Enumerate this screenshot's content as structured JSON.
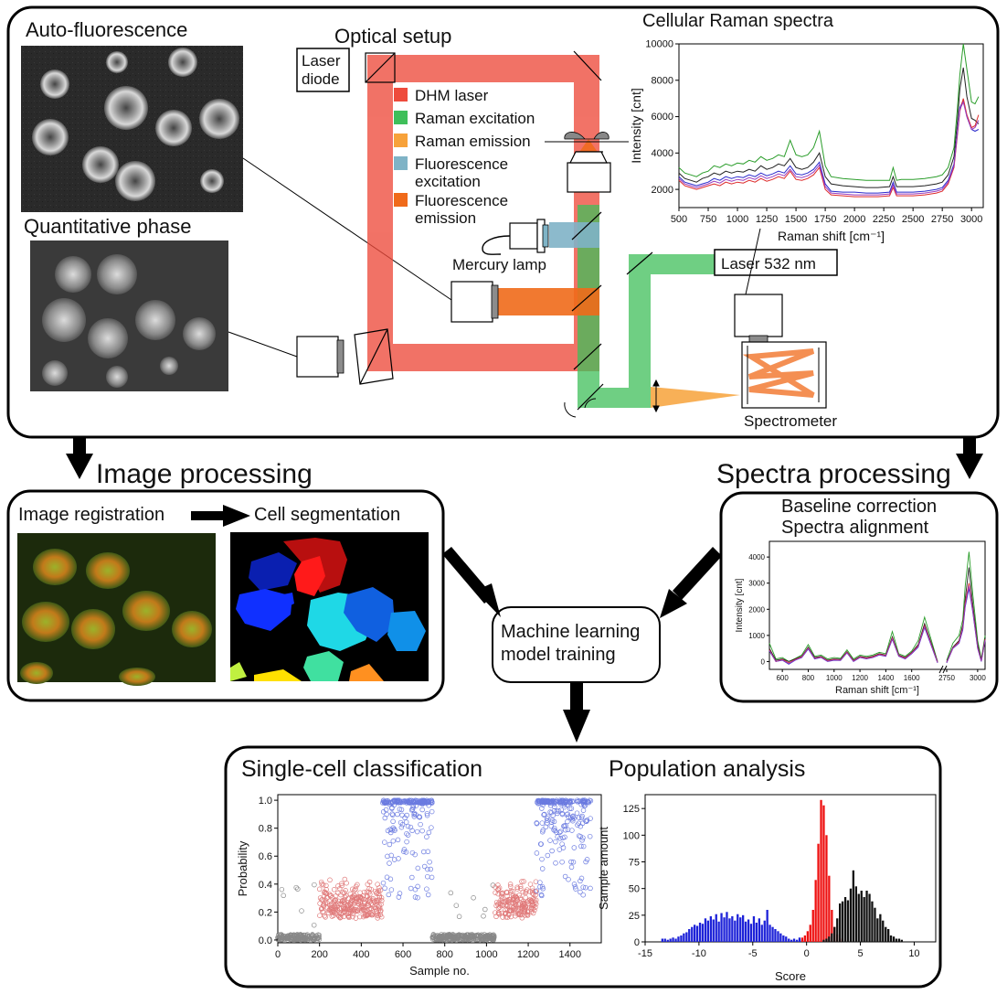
{
  "colors": {
    "dhm": "#ee4b3c",
    "raman_exc": "#3fbf5a",
    "raman_em": "#f7a23a",
    "fluo_exc": "#7fb3c6",
    "fluo_em": "#f06a1a",
    "class_a": "#e07a7a",
    "class_b": "#6b7be0",
    "class_c": "#888888",
    "hist_blue": "#1d22d8",
    "hist_red": "#ee1010",
    "hist_black": "#111111"
  },
  "top": {
    "autofluorescence_title": "Auto-fluorescence",
    "quantitative_phase_title": "Quantitative phase",
    "optical_setup_title": "Optical setup",
    "laser_diode_line1": "Laser",
    "laser_diode_line2": "diode",
    "mercury_lamp": "Mercury lamp",
    "laser_532": "Laser 532 nm",
    "spectrometer": "Spectrometer",
    "legend": [
      {
        "label1": "DHM laser",
        "label2": "",
        "color": "#ee4b3c"
      },
      {
        "label1": "Raman excitation",
        "label2": "",
        "color": "#3fbf5a"
      },
      {
        "label1": "Raman emission",
        "label2": "",
        "color": "#f7a23a"
      },
      {
        "label1": "Fluorescence",
        "label2": "excitation",
        "color": "#7fb3c6"
      },
      {
        "label1": "Fluorescence",
        "label2": "emission",
        "color": "#f06a1a"
      }
    ],
    "raman_chart_title": "Cellular Raman spectra"
  },
  "middle": {
    "image_processing_title": "Image processing",
    "image_registration": "Image registration",
    "cell_segmentation": "Cell segmentation",
    "spectra_processing_title": "Spectra processing",
    "baseline_correction": "Baseline correction",
    "spectra_alignment": "Spectra alignment",
    "ml_line1": "Machine learning",
    "ml_line2": "model training"
  },
  "bottom": {
    "single_cell_title": "Single-cell classification",
    "population_title": "Population analysis"
  },
  "chart_data": [
    {
      "id": "raw",
      "type": "line",
      "title": "",
      "xlabel": "Raman shift [cm⁻¹]",
      "ylabel": "Intensity [cnt]",
      "xlim": [
        500,
        3100
      ],
      "ylim": [
        1000,
        10000
      ],
      "xticks": [
        500,
        750,
        1000,
        1250,
        1500,
        1750,
        2000,
        2250,
        2500,
        2750,
        3000
      ],
      "yticks": [
        2000,
        4000,
        6000,
        8000,
        10000
      ],
      "x": [
        500,
        550,
        600,
        650,
        700,
        750,
        800,
        850,
        900,
        950,
        1000,
        1050,
        1100,
        1150,
        1200,
        1250,
        1300,
        1350,
        1400,
        1450,
        1500,
        1550,
        1600,
        1650,
        1700,
        1750,
        1800,
        1900,
        2000,
        2100,
        2200,
        2300,
        2330,
        2360,
        2400,
        2500,
        2600,
        2700,
        2750,
        2800,
        2850,
        2880,
        2900,
        2930,
        2960,
        3000,
        3030,
        3060
      ],
      "series": [
        {
          "color": "#2a9d2a",
          "values": [
            3200,
            2900,
            2800,
            2700,
            2900,
            3000,
            3300,
            3200,
            3400,
            3300,
            3450,
            3400,
            3600,
            3500,
            3800,
            3600,
            3700,
            3900,
            3800,
            4700,
            3900,
            3800,
            3900,
            4300,
            5200,
            3300,
            2700,
            2600,
            2550,
            2500,
            2500,
            2500,
            3200,
            2500,
            2550,
            2550,
            2600,
            2700,
            2800,
            3200,
            4300,
            6500,
            8300,
            10000,
            8600,
            6800,
            6700,
            7100
          ]
        },
        {
          "color": "#222222",
          "values": [
            2900,
            2600,
            2500,
            2400,
            2600,
            2700,
            2900,
            2800,
            3000,
            2900,
            3000,
            2950,
            3100,
            3000,
            3300,
            3100,
            3200,
            3400,
            3300,
            3700,
            3200,
            3100,
            3200,
            3500,
            4000,
            2700,
            2300,
            2200,
            2150,
            2100,
            2100,
            2150,
            2700,
            2150,
            2150,
            2150,
            2200,
            2300,
            2400,
            2800,
            3800,
            5800,
            7500,
            8700,
            7100,
            5900,
            5800,
            5600
          ]
        },
        {
          "color": "#2b2bcc",
          "values": [
            2700,
            2400,
            2300,
            2200,
            2300,
            2400,
            2600,
            2500,
            2700,
            2600,
            2700,
            2650,
            2800,
            2700,
            2900,
            2750,
            2850,
            3000,
            2900,
            3300,
            2850,
            2800,
            2900,
            3100,
            3500,
            2300,
            1900,
            1850,
            1850,
            1800,
            1800,
            1850,
            2400,
            1850,
            1850,
            1850,
            1900,
            2000,
            2100,
            2500,
            3400,
            5200,
            6500,
            6900,
            6000,
            5300,
            5200,
            5300
          ]
        },
        {
          "color": "#dd2a2a",
          "values": [
            2500,
            2200,
            2100,
            2000,
            2100,
            2200,
            2300,
            2200,
            2400,
            2300,
            2400,
            2350,
            2500,
            2400,
            2600,
            2450,
            2550,
            2700,
            2600,
            3000,
            2550,
            2500,
            2600,
            2800,
            3200,
            2000,
            1700,
            1650,
            1600,
            1600,
            1600,
            1650,
            2100,
            1650,
            1650,
            1650,
            1700,
            1800,
            1900,
            2300,
            3200,
            5000,
            6300,
            7000,
            6100,
            5400,
            5500,
            6100
          ]
        },
        {
          "color": "#9a3dbf",
          "values": [
            2600,
            2300,
            2200,
            2100,
            2200,
            2300,
            2450,
            2350,
            2550,
            2450,
            2550,
            2500,
            2650,
            2550,
            2750,
            2600,
            2700,
            2850,
            2750,
            3100,
            2700,
            2650,
            2750,
            2950,
            3350,
            2150,
            1800,
            1750,
            1700,
            1700,
            1700,
            1750,
            2250,
            1750,
            1750,
            1750,
            1800,
            1900,
            2000,
            2400,
            3300,
            5100,
            6400,
            6800,
            6000,
            5300,
            5400,
            5800
          ]
        }
      ]
    },
    {
      "id": "processed",
      "type": "line",
      "title": "",
      "xlabel": "Raman shift [cm⁻¹]",
      "ylabel": "Intensity [cnt]",
      "ylim": [
        -300,
        4600
      ],
      "yticks": [
        0,
        1000,
        2000,
        3000,
        4000
      ],
      "xticks": [
        "600",
        "800",
        "1000",
        "1200",
        "1400",
        "1600",
        "2750",
        "3000"
      ],
      "x": [
        500,
        550,
        600,
        650,
        700,
        750,
        800,
        850,
        900,
        950,
        1000,
        1050,
        1100,
        1150,
        1200,
        1250,
        1300,
        1350,
        1400,
        1450,
        1500,
        1550,
        1600,
        1650,
        1700,
        1800,
        2750,
        2800,
        2850,
        2880,
        2900,
        2930,
        2960,
        3000,
        3030,
        3060
      ],
      "series": [
        {
          "color": "#2a9d2a",
          "values": [
            700,
            100,
            150,
            0,
            120,
            250,
            650,
            200,
            250,
            100,
            150,
            120,
            450,
            100,
            250,
            200,
            250,
            350,
            300,
            1150,
            300,
            200,
            400,
            800,
            1700,
            0,
            50,
            700,
            1000,
            1600,
            2900,
            4200,
            2600,
            800,
            100,
            1000
          ]
        },
        {
          "color": "#222222",
          "values": [
            500,
            50,
            100,
            0,
            100,
            200,
            550,
            150,
            200,
            50,
            100,
            80,
            380,
            50,
            200,
            150,
            200,
            300,
            250,
            950,
            250,
            150,
            350,
            650,
            1450,
            0,
            0,
            550,
            800,
            1400,
            2400,
            3600,
            2200,
            650,
            50,
            900
          ]
        },
        {
          "color": "#2b2bcc",
          "values": [
            400,
            0,
            50,
            -100,
            50,
            150,
            480,
            100,
            150,
            0,
            50,
            40,
            330,
            0,
            150,
            100,
            150,
            250,
            200,
            850,
            200,
            100,
            300,
            550,
            1300,
            -50,
            -50,
            500,
            700,
            1200,
            2100,
            2800,
            1900,
            500,
            0,
            800
          ]
        },
        {
          "color": "#dd2a2a",
          "values": [
            450,
            0,
            80,
            -50,
            80,
            180,
            520,
            120,
            180,
            30,
            80,
            60,
            360,
            30,
            180,
            130,
            180,
            280,
            230,
            900,
            230,
            130,
            330,
            600,
            1380,
            -30,
            -30,
            520,
            750,
            1300,
            2250,
            3000,
            2000,
            550,
            20,
            850
          ]
        },
        {
          "color": "#9a3dbf",
          "values": [
            420,
            0,
            60,
            -80,
            60,
            160,
            500,
            110,
            160,
            10,
            60,
            50,
            340,
            10,
            160,
            110,
            160,
            260,
            210,
            870,
            210,
            110,
            310,
            570,
            1330,
            -40,
            -40,
            510,
            720,
            1250,
            2150,
            2900,
            1950,
            520,
            10,
            820
          ]
        }
      ]
    },
    {
      "id": "classification",
      "type": "scatter",
      "title": "",
      "xlabel": "Sample no.",
      "ylabel": "Probability",
      "xlim": [
        0,
        1550
      ],
      "ylim": [
        -0.02,
        1.04
      ],
      "xticks": [
        0,
        200,
        400,
        600,
        800,
        1000,
        1200,
        1400
      ],
      "yticks": [
        "0.0",
        "0.2",
        "0.4",
        "0.6",
        "0.8",
        "1.0"
      ],
      "series": [
        {
          "color": "#888888",
          "segments": [
            [
              0,
              200,
              0.0,
              0.04
            ],
            [
              740,
              1040,
              0.0,
              0.04
            ]
          ]
        },
        {
          "color": "#e07a7a",
          "segments": [
            [
              200,
              500,
              0.1,
              0.45
            ],
            [
              1040,
              1240,
              0.1,
              0.45
            ]
          ]
        },
        {
          "color": "#6b7be0",
          "segments": [
            [
              500,
              740,
              0.6,
              1.0
            ],
            [
              1240,
              1500,
              0.6,
              1.0
            ]
          ]
        }
      ]
    },
    {
      "id": "population",
      "type": "bar",
      "title": "",
      "xlabel": "Score",
      "ylabel": "Sample amount",
      "xlim": [
        -15,
        12
      ],
      "ylim": [
        0,
        138
      ],
      "xticks": [
        -15,
        -10,
        -5,
        0,
        5,
        10
      ],
      "yticks": [
        0,
        25,
        50,
        75,
        100,
        125
      ],
      "bin_width": 0.25,
      "series": [
        {
          "color": "#1d22d8",
          "start": -13.5,
          "values": [
            3,
            3,
            2,
            3,
            4,
            3,
            5,
            6,
            8,
            9,
            12,
            14,
            16,
            15,
            18,
            17,
            22,
            20,
            24,
            21,
            26,
            19,
            27,
            23,
            28,
            22,
            24,
            20,
            26,
            23,
            25,
            19,
            21,
            17,
            24,
            18,
            22,
            16,
            20,
            30,
            16,
            14,
            12,
            10,
            8,
            6,
            5,
            3,
            2,
            3,
            2,
            4,
            2,
            1
          ]
        },
        {
          "color": "#ee1010",
          "start": -0.5,
          "values": [
            4,
            6,
            10,
            16,
            30,
            58,
            92,
            133,
            128,
            100,
            62,
            30,
            14,
            7,
            3
          ]
        },
        {
          "color": "#111111",
          "start": 1.5,
          "values": [
            2,
            3,
            5,
            8,
            14,
            22,
            36,
            38,
            42,
            39,
            50,
            67,
            52,
            45,
            48,
            42,
            48,
            45,
            38,
            32,
            22,
            26,
            20,
            14,
            12,
            6,
            5,
            3,
            3,
            2
          ]
        }
      ]
    }
  ]
}
